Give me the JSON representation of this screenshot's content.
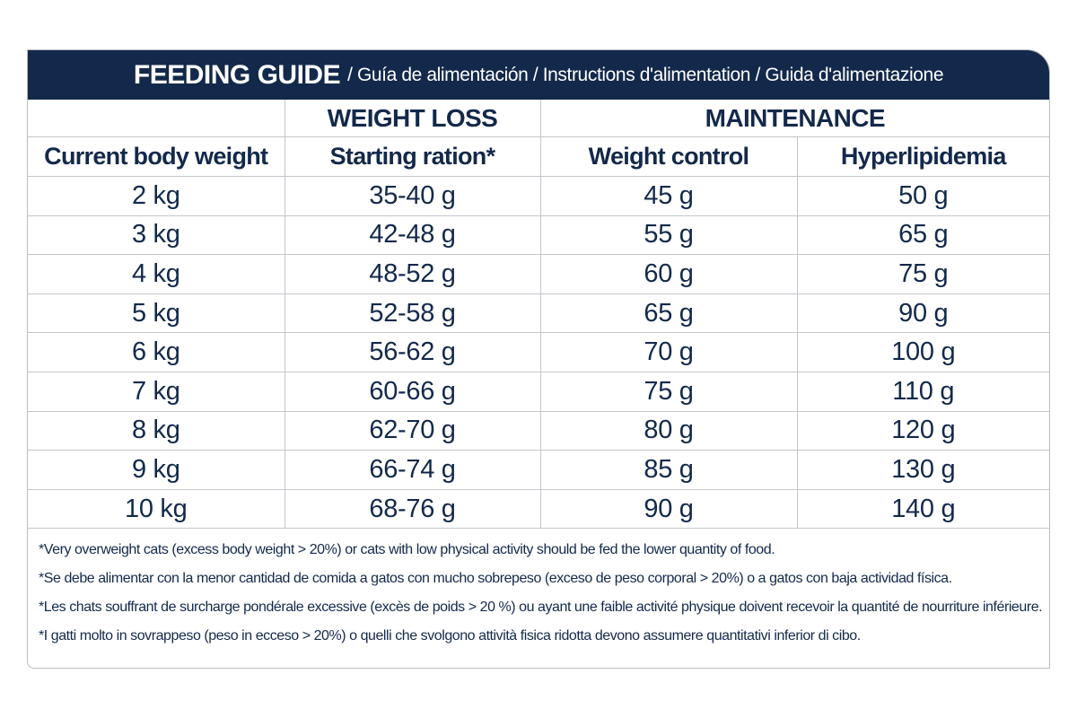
{
  "header": {
    "title": "FEEDING GUIDE",
    "subtitle": "/ Guía de alimentación / Instructions d'alimentation / Guida d'alimentazione"
  },
  "table": {
    "groups": [
      "WEIGHT LOSS",
      "MAINTENANCE"
    ],
    "columns": [
      "Current body weight",
      "Starting ration*",
      "Weight control",
      "Hyperlipidemia"
    ],
    "rows": [
      [
        "2 kg",
        "35-40 g",
        "45 g",
        "50 g"
      ],
      [
        "3 kg",
        "42-48 g",
        "55 g",
        "65 g"
      ],
      [
        "4 kg",
        "48-52 g",
        "60 g",
        "75 g"
      ],
      [
        "5 kg",
        "52-58 g",
        "65 g",
        "90 g"
      ],
      [
        "6 kg",
        "56-62 g",
        "70 g",
        "100 g"
      ],
      [
        "7 kg",
        "60-66 g",
        "75 g",
        "110 g"
      ],
      [
        "8 kg",
        "62-70 g",
        "80 g",
        "120 g"
      ],
      [
        "9 kg",
        "66-74 g",
        "85 g",
        "130 g"
      ],
      [
        "10 kg",
        "68-76 g",
        "90 g",
        "140 g"
      ]
    ]
  },
  "footnotes": [
    "*Very overweight cats (excess body weight > 20%) or cats with low physical activity should be fed the lower quantity of food.",
    "*Se debe alimentar con la menor cantidad de comida a gatos con mucho sobrepeso (exceso de peso corporal > 20%) o a gatos con baja actividad física.",
    "*Les chats souffrant de surcharge pondérale excessive (excès de poids > 20 %) ou ayant une faible activité physique doivent recevoir la quantité de nourriture inférieure.",
    "*I gatti molto in sovrappeso (peso in ecceso > 20%) o quelli che svolgono attività fisica ridotta devono assumere quantitativi inferior di cibo."
  ]
}
